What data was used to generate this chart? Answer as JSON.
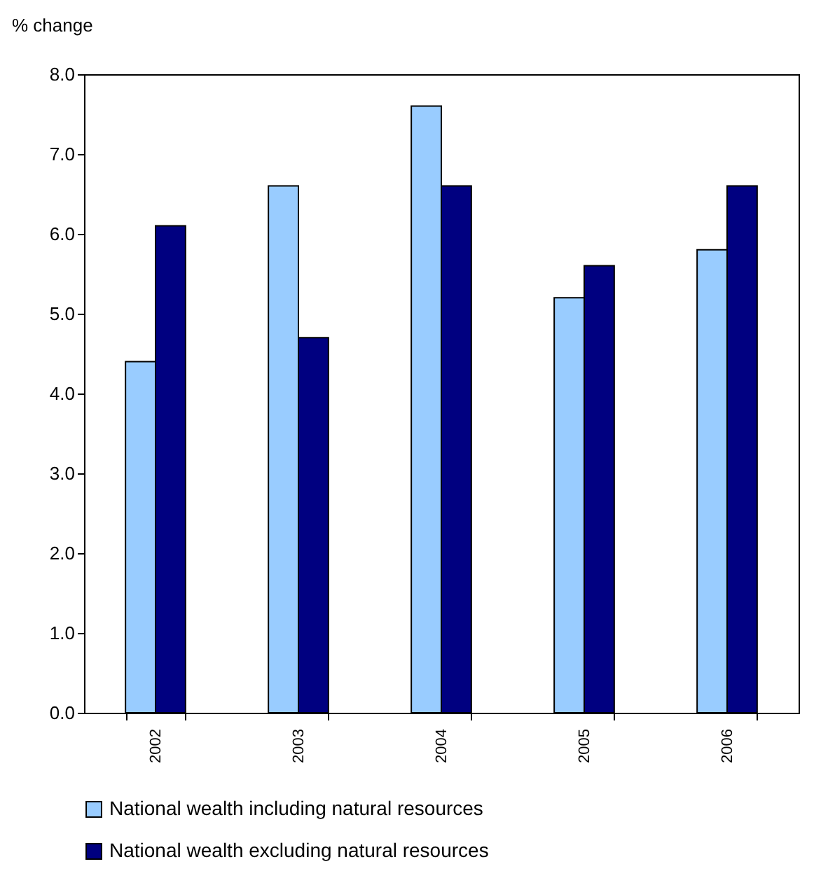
{
  "chart_data": {
    "type": "bar",
    "ylabel": "% change",
    "categories": [
      "2002",
      "2003",
      "2004",
      "2005",
      "2006"
    ],
    "series": [
      {
        "name": "National wealth including natural resources",
        "color": "#99ccff",
        "values": [
          4.4,
          6.6,
          7.6,
          5.2,
          5.8
        ]
      },
      {
        "name": "National wealth excluding natural resources",
        "color": "#000080",
        "values": [
          6.1,
          4.7,
          6.6,
          5.6,
          6.6
        ]
      }
    ],
    "ylim": [
      0,
      8
    ],
    "yticks": [
      {
        "value": 0,
        "label": "0.0"
      },
      {
        "value": 1,
        "label": "1.0"
      },
      {
        "value": 2,
        "label": "2.0"
      },
      {
        "value": 3,
        "label": "3.0"
      },
      {
        "value": 4,
        "label": "4.0"
      },
      {
        "value": 5,
        "label": "5.0"
      },
      {
        "value": 6,
        "label": "6.0"
      },
      {
        "value": 7,
        "label": "7.0"
      },
      {
        "value": 8,
        "label": "8.0"
      }
    ],
    "grid": false,
    "legend": "bottom"
  }
}
